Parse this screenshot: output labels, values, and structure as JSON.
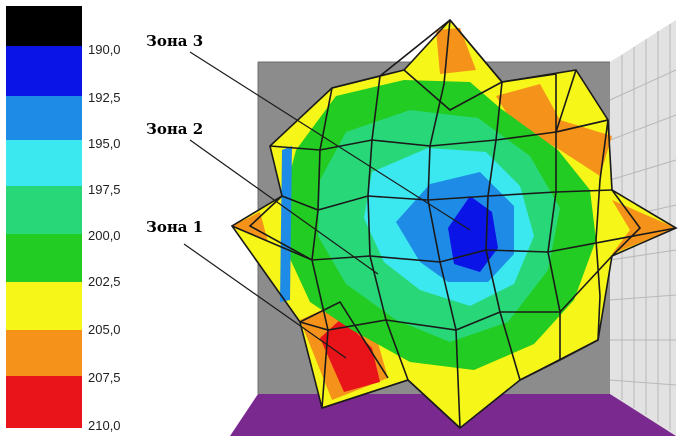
{
  "colorbar": {
    "ticks": [
      "190,0",
      "192,5",
      "195,0",
      "197,5",
      "200,0",
      "202,5",
      "205,0",
      "207,5",
      "210,0"
    ],
    "colors": [
      "#000000",
      "#0a14e6",
      "#1e8ce6",
      "#3ce8f0",
      "#28d878",
      "#22cc22",
      "#f6f618",
      "#f5921a",
      "#e8141a"
    ]
  },
  "zones": [
    {
      "label": "Зона 3"
    },
    {
      "label": "Зона 2"
    },
    {
      "label": "Зона 1"
    }
  ],
  "colors": {
    "floor": "#7a2a8e",
    "back_wall": "#8c8c8c",
    "side_wall": "#e0e0e0",
    "mesh": "#1a1a1a"
  }
}
